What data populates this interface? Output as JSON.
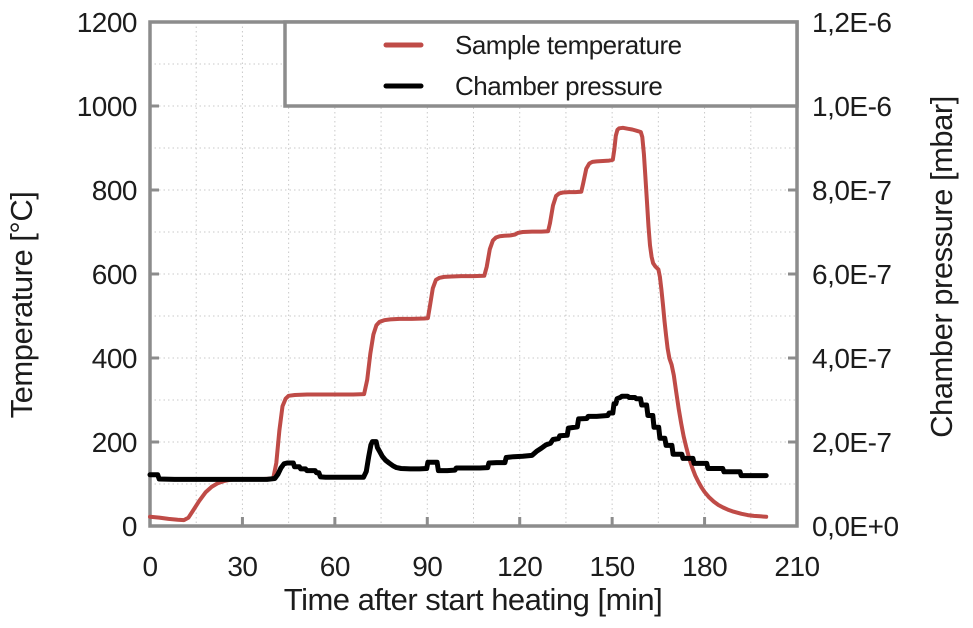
{
  "colors": {
    "background": "#ffffff",
    "axis_frame": "#8c8c8c",
    "gridline": "#c9c9c9",
    "text": "#1c1c1c",
    "temperature_series": "#bf4b47",
    "pressure_series": "#000000"
  },
  "chart_data": {
    "type": "line",
    "title": "",
    "xlabel": "Time after start heating [min]",
    "ylabel_left": "Temperature [°C]",
    "ylabel_right": "Chamber pressure [mbar]",
    "grid": "dotted minor grid every 15 min and every 100 °C",
    "legend_position": "top inside plot, full-width box",
    "x_axis": {
      "min": 0,
      "max": 210,
      "tick_step": 30,
      "minor_step": 15,
      "tick_labels": [
        "0",
        "30",
        "60",
        "90",
        "120",
        "150",
        "180",
        "210"
      ]
    },
    "y_left": {
      "min": 0,
      "max": 1200,
      "tick_step": 200,
      "minor_step": 100,
      "tick_labels": [
        "0",
        "200",
        "400",
        "600",
        "800",
        "1000",
        "1200"
      ]
    },
    "y_right": {
      "min": 0,
      "max": 1.2e-06,
      "tick_step": 2e-07,
      "tick_labels": [
        "0,0E+0",
        "2,0E-7",
        "4,0E-7",
        "6,0E-7",
        "8,0E-7",
        "1,0E-6",
        "1,2E-6"
      ]
    },
    "series": [
      {
        "name": "Sample temperature",
        "axis": "left",
        "color": "#bf4b47",
        "stroke_width": 4,
        "points": [
          [
            0,
            22
          ],
          [
            3,
            20
          ],
          [
            6,
            17
          ],
          [
            9,
            15
          ],
          [
            11,
            14
          ],
          [
            12.5,
            20
          ],
          [
            14,
            37
          ],
          [
            16,
            60
          ],
          [
            18,
            80
          ],
          [
            20,
            93
          ],
          [
            22,
            102
          ],
          [
            24,
            107
          ],
          [
            26,
            110
          ],
          [
            29,
            112
          ],
          [
            33,
            112
          ],
          [
            37,
            112
          ],
          [
            40,
            113
          ],
          [
            41,
            150
          ],
          [
            42,
            228
          ],
          [
            43,
            285
          ],
          [
            44,
            303
          ],
          [
            45,
            310
          ],
          [
            47,
            312
          ],
          [
            51,
            313
          ],
          [
            56,
            313
          ],
          [
            61,
            313
          ],
          [
            66,
            313
          ],
          [
            69.5,
            314
          ],
          [
            70.5,
            348
          ],
          [
            71.5,
            410
          ],
          [
            72.5,
            456
          ],
          [
            73.5,
            478
          ],
          [
            74.5,
            486
          ],
          [
            76,
            490
          ],
          [
            78,
            492
          ],
          [
            81,
            493
          ],
          [
            85,
            493
          ],
          [
            89,
            494
          ],
          [
            90.2,
            495
          ],
          [
            90.8,
            522
          ],
          [
            91.8,
            566
          ],
          [
            92.8,
            586
          ],
          [
            94,
            591
          ],
          [
            95.5,
            593
          ],
          [
            98,
            594
          ],
          [
            101,
            595
          ],
          [
            105,
            595
          ],
          [
            108.5,
            596
          ],
          [
            109.3,
            617
          ],
          [
            110.3,
            659
          ],
          [
            111.3,
            680
          ],
          [
            112.3,
            687
          ],
          [
            113.5,
            690
          ],
          [
            115,
            691
          ],
          [
            117,
            692
          ],
          [
            118.5,
            694
          ],
          [
            119.5,
            698
          ],
          [
            121,
            700
          ],
          [
            124,
            701
          ],
          [
            127,
            701
          ],
          [
            129.2,
            702
          ],
          [
            129.8,
            720
          ],
          [
            130.8,
            763
          ],
          [
            131.8,
            786
          ],
          [
            132.8,
            792
          ],
          [
            134,
            794
          ],
          [
            136,
            795
          ],
          [
            138,
            795
          ],
          [
            140,
            796
          ],
          [
            140.6,
            816
          ],
          [
            141.6,
            851
          ],
          [
            142.6,
            863
          ],
          [
            143.6,
            867
          ],
          [
            145,
            868
          ],
          [
            147,
            869
          ],
          [
            149,
            870
          ],
          [
            150.2,
            872
          ],
          [
            150.7,
            896
          ],
          [
            151.2,
            929
          ],
          [
            151.7,
            943
          ],
          [
            152.3,
            947
          ],
          [
            153.5,
            948
          ],
          [
            155,
            946
          ],
          [
            156.5,
            944
          ],
          [
            158,
            941
          ],
          [
            159.3,
            938
          ],
          [
            159.8,
            926
          ],
          [
            160.3,
            886
          ],
          [
            160.8,
            831
          ],
          [
            161.3,
            771
          ],
          [
            161.8,
            713
          ],
          [
            162.3,
            668
          ],
          [
            162.8,
            641
          ],
          [
            163.3,
            626
          ],
          [
            164,
            618
          ],
          [
            165,
            611
          ],
          [
            165.5,
            593
          ],
          [
            166,
            563
          ],
          [
            166.5,
            526
          ],
          [
            167,
            488
          ],
          [
            167.5,
            453
          ],
          [
            168,
            423
          ],
          [
            168.6,
            399
          ],
          [
            169.3,
            384
          ],
          [
            170,
            359
          ],
          [
            170.8,
            319
          ],
          [
            171.6,
            279
          ],
          [
            172.4,
            244
          ],
          [
            173.2,
            214
          ],
          [
            174,
            189
          ],
          [
            175,
            161
          ],
          [
            176,
            139
          ],
          [
            177,
            120
          ],
          [
            178,
            105
          ],
          [
            179,
            92
          ],
          [
            180,
            81
          ],
          [
            181.5,
            68
          ],
          [
            183,
            58
          ],
          [
            184.5,
            50
          ],
          [
            186,
            44
          ],
          [
            187.5,
            39
          ],
          [
            189,
            35
          ],
          [
            190.5,
            32
          ],
          [
            192,
            29
          ],
          [
            194,
            26
          ],
          [
            196,
            24
          ],
          [
            198,
            23
          ],
          [
            200,
            22
          ]
        ]
      },
      {
        "name": "Chamber pressure",
        "axis": "right",
        "color": "#000000",
        "stroke_width": 5,
        "points": [
          [
            0,
            1.22e-07
          ],
          [
            2.5,
            1.22e-07
          ],
          [
            3,
            1.12e-07
          ],
          [
            8,
            1.11e-07
          ],
          [
            14,
            1.11e-07
          ],
          [
            20,
            1.11e-07
          ],
          [
            26,
            1.11e-07
          ],
          [
            32,
            1.11e-07
          ],
          [
            38,
            1.11e-07
          ],
          [
            40.5,
            1.13e-07
          ],
          [
            41.5,
            1.23e-07
          ],
          [
            42.5,
            1.38e-07
          ],
          [
            43.5,
            1.48e-07
          ],
          [
            44.5,
            1.5e-07
          ],
          [
            46.5,
            1.5e-07
          ],
          [
            46.9,
            1.41e-07
          ],
          [
            48.5,
            1.41e-07
          ],
          [
            48.9,
            1.36e-07
          ],
          [
            50.5,
            1.36e-07
          ],
          [
            50.9,
            1.32e-07
          ],
          [
            53.6,
            1.32e-07
          ],
          [
            54,
            1.27e-07
          ],
          [
            54.8,
            1.27e-07
          ],
          [
            55.3,
            1.17e-07
          ],
          [
            57,
            1.16e-07
          ],
          [
            61,
            1.16e-07
          ],
          [
            65,
            1.16e-07
          ],
          [
            69.3,
            1.16e-07
          ],
          [
            70.2,
            1.3e-07
          ],
          [
            71,
            1.65e-07
          ],
          [
            71.7,
            1.93e-07
          ],
          [
            72.2,
            2.01e-07
          ],
          [
            73.4,
            2.01e-07
          ],
          [
            73.8,
            1.87e-07
          ],
          [
            74.6,
            1.77e-07
          ],
          [
            75.4,
            1.66e-07
          ],
          [
            76.4,
            1.57e-07
          ],
          [
            77.6,
            1.5e-07
          ],
          [
            78.9,
            1.43e-07
          ],
          [
            80,
            1.39e-07
          ],
          [
            81.5,
            1.37e-07
          ],
          [
            84.5,
            1.36e-07
          ],
          [
            87.5,
            1.36e-07
          ],
          [
            89.8,
            1.37e-07
          ],
          [
            90.2,
            1.52e-07
          ],
          [
            93.2,
            1.52e-07
          ],
          [
            93.6,
            1.32e-07
          ],
          [
            96.5,
            1.32e-07
          ],
          [
            99,
            1.33e-07
          ],
          [
            99.4,
            1.38e-07
          ],
          [
            103,
            1.38e-07
          ],
          [
            107,
            1.38e-07
          ],
          [
            109.6,
            1.39e-07
          ],
          [
            110,
            1.5e-07
          ],
          [
            112.5,
            1.51e-07
          ],
          [
            115.2,
            1.51e-07
          ],
          [
            115.6,
            1.63e-07
          ],
          [
            118,
            1.65e-07
          ],
          [
            121,
            1.66e-07
          ],
          [
            124,
            1.68e-07
          ],
          [
            125.5,
            1.78e-07
          ],
          [
            127,
            1.85e-07
          ],
          [
            128.5,
            1.93e-07
          ],
          [
            130,
            1.97e-07
          ],
          [
            130.8,
            2.06e-07
          ],
          [
            132.6,
            2.08e-07
          ],
          [
            133,
            2.15e-07
          ],
          [
            135.4,
            2.16e-07
          ],
          [
            135.8,
            2.33e-07
          ],
          [
            138.7,
            2.36e-07
          ],
          [
            139.1,
            2.55e-07
          ],
          [
            141.8,
            2.56e-07
          ],
          [
            142.2,
            2.61e-07
          ],
          [
            145,
            2.61e-07
          ],
          [
            148.6,
            2.63e-07
          ],
          [
            149,
            2.69e-07
          ],
          [
            150.2,
            2.69e-07
          ],
          [
            150.6,
            2.91e-07
          ],
          [
            151.2,
            2.91e-07
          ],
          [
            151.6,
            3.03e-07
          ],
          [
            152.6,
            3.06e-07
          ],
          [
            153.2,
            3.09e-07
          ],
          [
            155,
            3.09e-07
          ],
          [
            155.6,
            3.06e-07
          ],
          [
            157.4,
            3.06e-07
          ],
          [
            157.8,
            3.03e-07
          ],
          [
            159.2,
            3.03e-07
          ],
          [
            159.6,
            2.88e-07
          ],
          [
            161.2,
            2.88e-07
          ],
          [
            161.6,
            2.63e-07
          ],
          [
            163.2,
            2.63e-07
          ],
          [
            163.6,
            2.35e-07
          ],
          [
            165.1,
            2.35e-07
          ],
          [
            165.5,
            2.09e-07
          ],
          [
            167.1,
            2.09e-07
          ],
          [
            167.5,
            1.92e-07
          ],
          [
            169.4,
            1.92e-07
          ],
          [
            169.8,
            1.71e-07
          ],
          [
            172.6,
            1.71e-07
          ],
          [
            173,
            1.61e-07
          ],
          [
            176.2,
            1.61e-07
          ],
          [
            176.6,
            1.49e-07
          ],
          [
            180.7,
            1.49e-07
          ],
          [
            181.1,
            1.37e-07
          ],
          [
            185.9,
            1.37e-07
          ],
          [
            186.3,
            1.29e-07
          ],
          [
            191.5,
            1.29e-07
          ],
          [
            191.9,
            1.2e-07
          ],
          [
            196,
            1.2e-07
          ],
          [
            200,
            1.2e-07
          ]
        ]
      }
    ]
  }
}
